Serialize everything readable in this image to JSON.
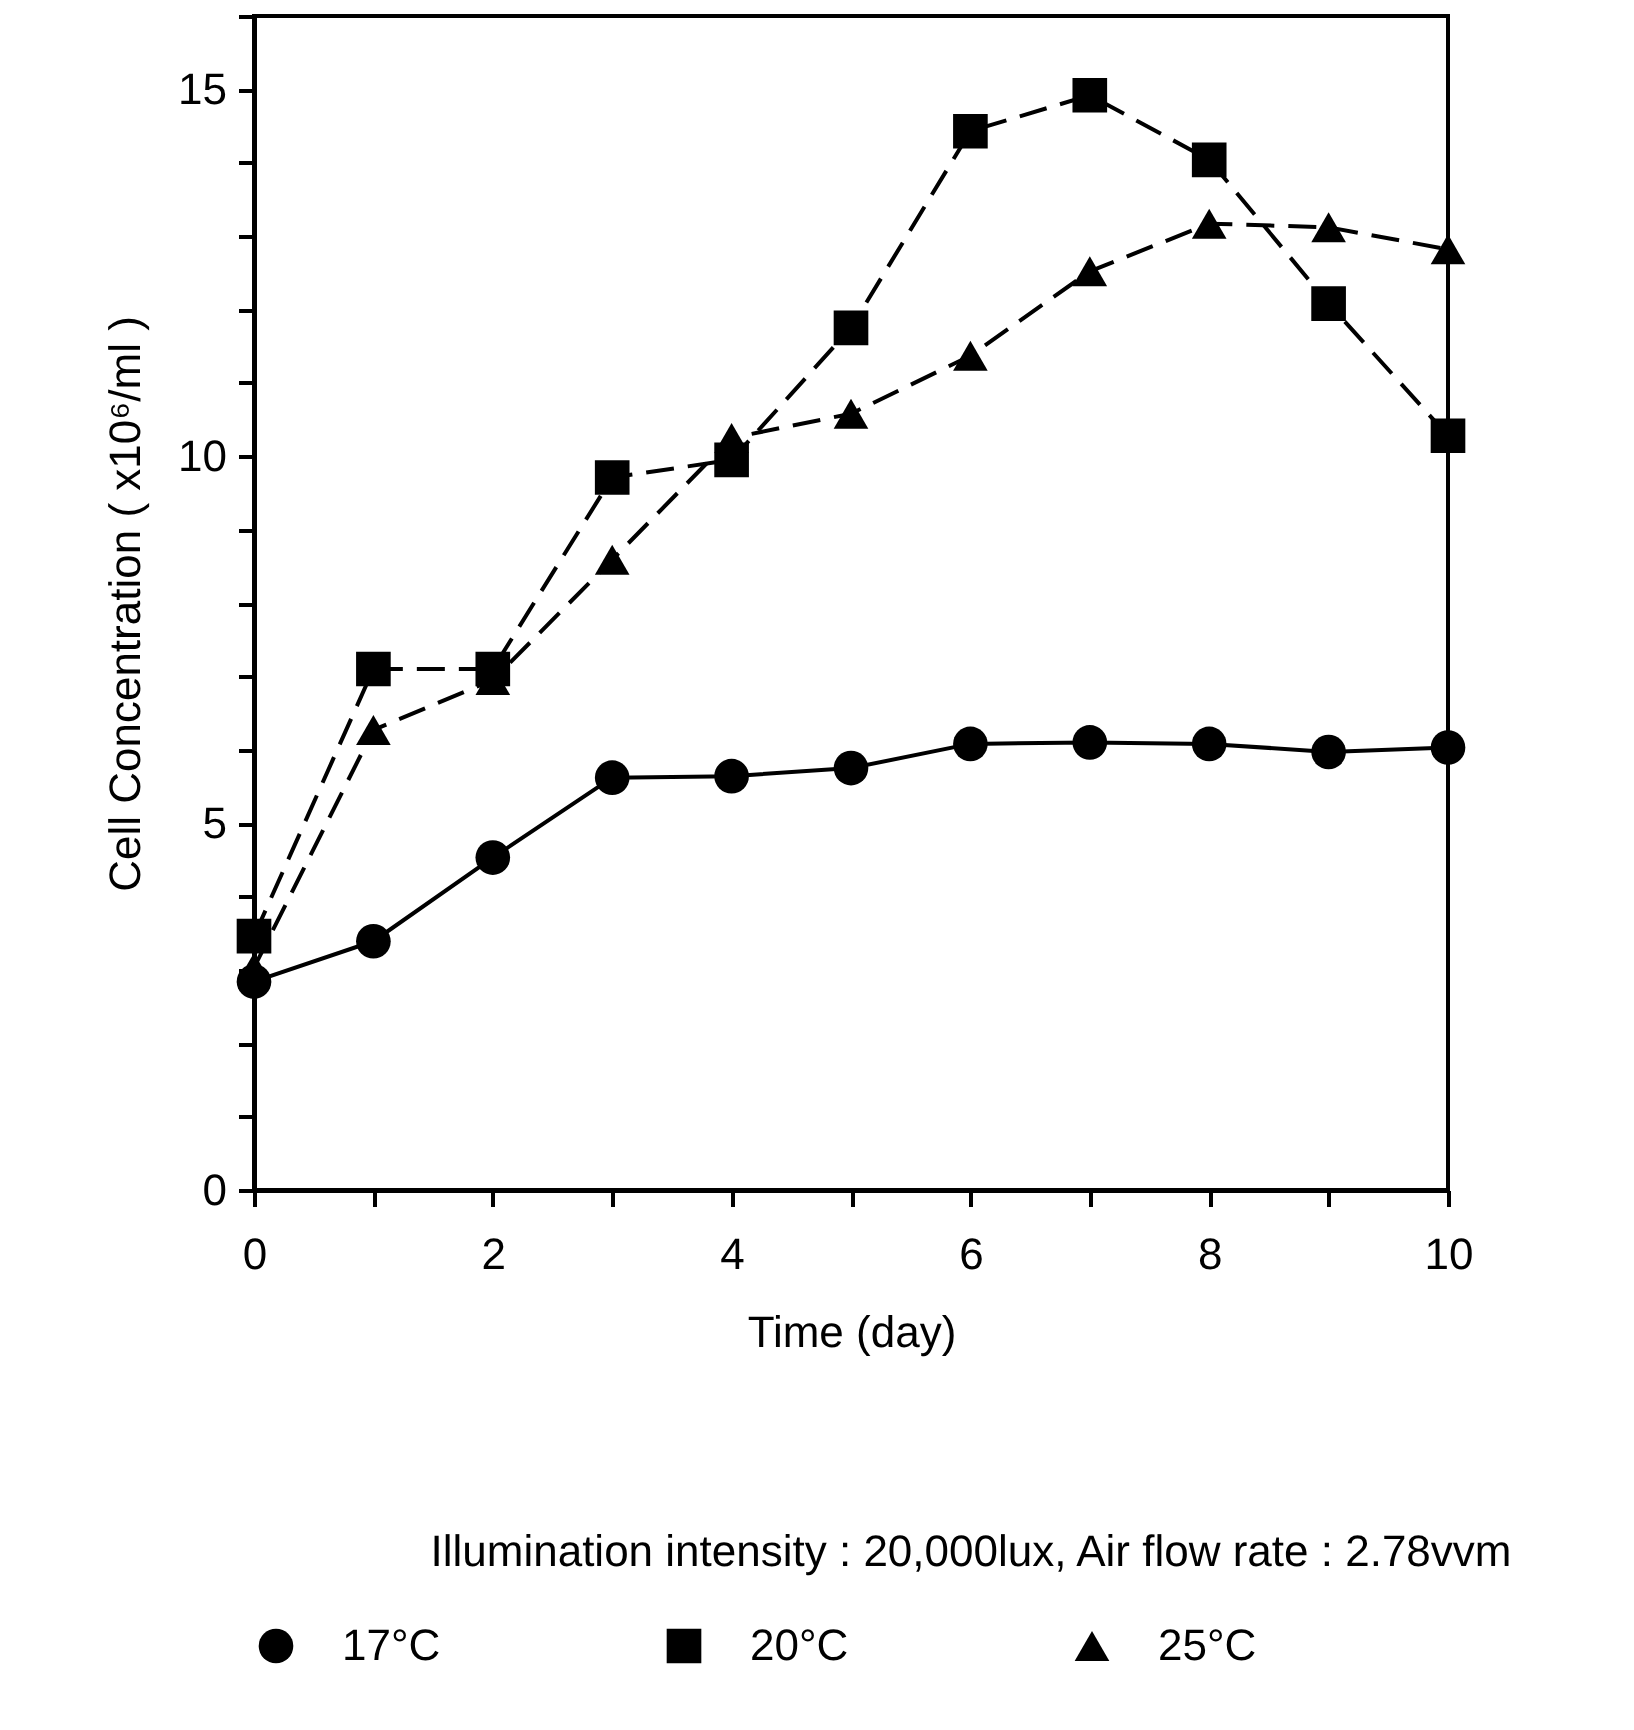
{
  "chart_data": {
    "type": "line",
    "xlabel": "Time (day)",
    "ylabel": "Cell Concentration ( x10⁶/ml )",
    "x": [
      0,
      1,
      2,
      3,
      4,
      5,
      6,
      7,
      8,
      9,
      10
    ],
    "xlim": [
      0,
      10
    ],
    "xticks": [
      0,
      {
        "value": 1,
        "label": null
      },
      2,
      {
        "value": 3,
        "label": null
      },
      4,
      {
        "value": 5,
        "label": null
      },
      6,
      {
        "value": 7,
        "label": null
      },
      8,
      {
        "value": 9,
        "label": null
      },
      10
    ],
    "ylim": [
      0,
      16
    ],
    "yticks": [
      0,
      {
        "value": 1,
        "label": null
      },
      {
        "value": 2,
        "label": null
      },
      {
        "value": 3,
        "label": null
      },
      {
        "value": 4,
        "label": null
      },
      5,
      {
        "value": 6,
        "label": null
      },
      {
        "value": 7,
        "label": null
      },
      {
        "value": 8,
        "label": null
      },
      {
        "value": 9,
        "label": null
      },
      10,
      {
        "value": 11,
        "label": null
      },
      {
        "value": 12,
        "label": null
      },
      {
        "value": 13,
        "label": null
      },
      {
        "value": 14,
        "label": null
      },
      15,
      {
        "value": 16,
        "label": null
      }
    ],
    "grid": false,
    "legend": "bottom",
    "annotations": [
      "Illumination intensity : 20,000lux, Air flow rate : 2.78vvm"
    ],
    "series": [
      {
        "name": "17°C",
        "color": "#000000",
        "marker": "circle",
        "line_style": "solid",
        "values": [
          2.84,
          3.39,
          4.53,
          5.62,
          5.64,
          5.75,
          6.08,
          6.1,
          6.08,
          5.97,
          6.03
        ]
      },
      {
        "name": "20°C",
        "color": "#000000",
        "marker": "square",
        "line_style": "dashed",
        "values": [
          3.46,
          7.1,
          7.1,
          9.71,
          9.95,
          11.75,
          14.43,
          14.92,
          14.04,
          12.08,
          10.28
        ]
      },
      {
        "name": "25°C",
        "color": "#000000",
        "marker": "triangle",
        "line_style": "dashed",
        "values": [
          3.03,
          6.27,
          6.95,
          8.59,
          10.25,
          10.58,
          11.37,
          12.52,
          13.17,
          13.12,
          12.82
        ]
      }
    ]
  }
}
